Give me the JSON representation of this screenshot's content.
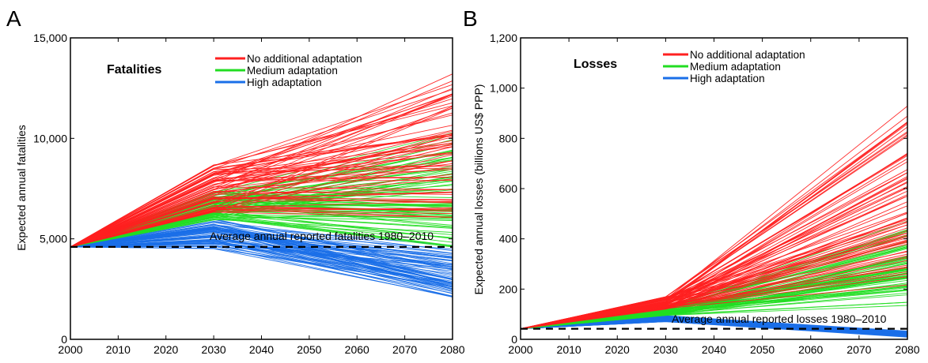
{
  "chart_data": [
    {
      "type": "line",
      "panel": "A",
      "title": "Fatalities",
      "xlabel": "",
      "ylabel": "Expected annual fatalities",
      "xlim": [
        2000,
        2080
      ],
      "ylim": [
        0,
        15000
      ],
      "x_ticks": [
        2000,
        2010,
        2020,
        2030,
        2040,
        2050,
        2060,
        2070,
        2080
      ],
      "x_tick_labels": [
        "2000",
        "2010",
        "2020",
        "2030",
        "2040",
        "2050",
        "2060",
        "2070",
        "2080"
      ],
      "y_ticks": [
        0,
        5000,
        10000,
        15000
      ],
      "y_tick_labels": [
        "0",
        "5,000",
        "10,000",
        "15,000"
      ],
      "x": [
        2000,
        2030,
        2080
      ],
      "legend": {
        "position": "top-center",
        "entries": [
          {
            "label": "No additional adaptation",
            "color": "#ff2020"
          },
          {
            "label": "Medium adaptation",
            "color": "#22dd22"
          },
          {
            "label": "High adaptation",
            "color": "#1a6fe8"
          }
        ]
      },
      "series_groups": [
        {
          "name": "No additional adaptation",
          "color": "#ff2020",
          "count": 70,
          "start": 4600,
          "range_2030": [
            6300,
            8700
          ],
          "range_2080": [
            5800,
            14500
          ]
        },
        {
          "name": "Medium adaptation",
          "color": "#22dd22",
          "count": 70,
          "start": 4600,
          "range_2030": [
            5900,
            7400
          ],
          "range_2080": [
            4200,
            10900
          ]
        },
        {
          "name": "High adaptation",
          "color": "#1a6fe8",
          "count": 70,
          "start": 4600,
          "range_2030": [
            4500,
            6000
          ],
          "range_2080": [
            1800,
            4900
          ]
        }
      ],
      "reference_line": {
        "label": "Average annual reported fatalities 1980–2010",
        "value": 4600,
        "style": "dashed"
      }
    },
    {
      "type": "line",
      "panel": "B",
      "title": "Losses",
      "xlabel": "",
      "ylabel": "Expected annual losses (billions US$ PPP)",
      "xlim": [
        2000,
        2080
      ],
      "ylim": [
        0,
        1200
      ],
      "x_ticks": [
        2000,
        2010,
        2020,
        2030,
        2040,
        2050,
        2060,
        2070,
        2080
      ],
      "x_tick_labels": [
        "2000",
        "2010",
        "2020",
        "2030",
        "2040",
        "2050",
        "2060",
        "2070",
        "2080"
      ],
      "y_ticks": [
        0,
        200,
        400,
        600,
        800,
        1000,
        1200
      ],
      "y_tick_labels": [
        "0",
        "200",
        "400",
        "600",
        "800",
        "1,000",
        "1,200"
      ],
      "x": [
        2000,
        2030,
        2080
      ],
      "legend": {
        "position": "top-center",
        "entries": [
          {
            "label": "No additional adaptation",
            "color": "#ff2020"
          },
          {
            "label": "Medium adaptation",
            "color": "#22dd22"
          },
          {
            "label": "High adaptation",
            "color": "#1a6fe8"
          }
        ]
      },
      "series_groups": [
        {
          "name": "No additional adaptation",
          "color": "#ff2020",
          "count": 70,
          "start": 42,
          "range_2030": [
            120,
            170
          ],
          "range_2080": [
            200,
            1000
          ]
        },
        {
          "name": "Medium adaptation",
          "color": "#22dd22",
          "count": 70,
          "start": 42,
          "range_2030": [
            95,
            130
          ],
          "range_2080": [
            125,
            510
          ]
        },
        {
          "name": "High adaptation",
          "color": "#1a6fe8",
          "count": 60,
          "start": 42,
          "range_2030": [
            70,
            95
          ],
          "range_2080": [
            8,
            35
          ]
        }
      ],
      "reference_line": {
        "label": "Average annual reported losses 1980–2010",
        "value": 42,
        "style": "dashed"
      }
    }
  ]
}
